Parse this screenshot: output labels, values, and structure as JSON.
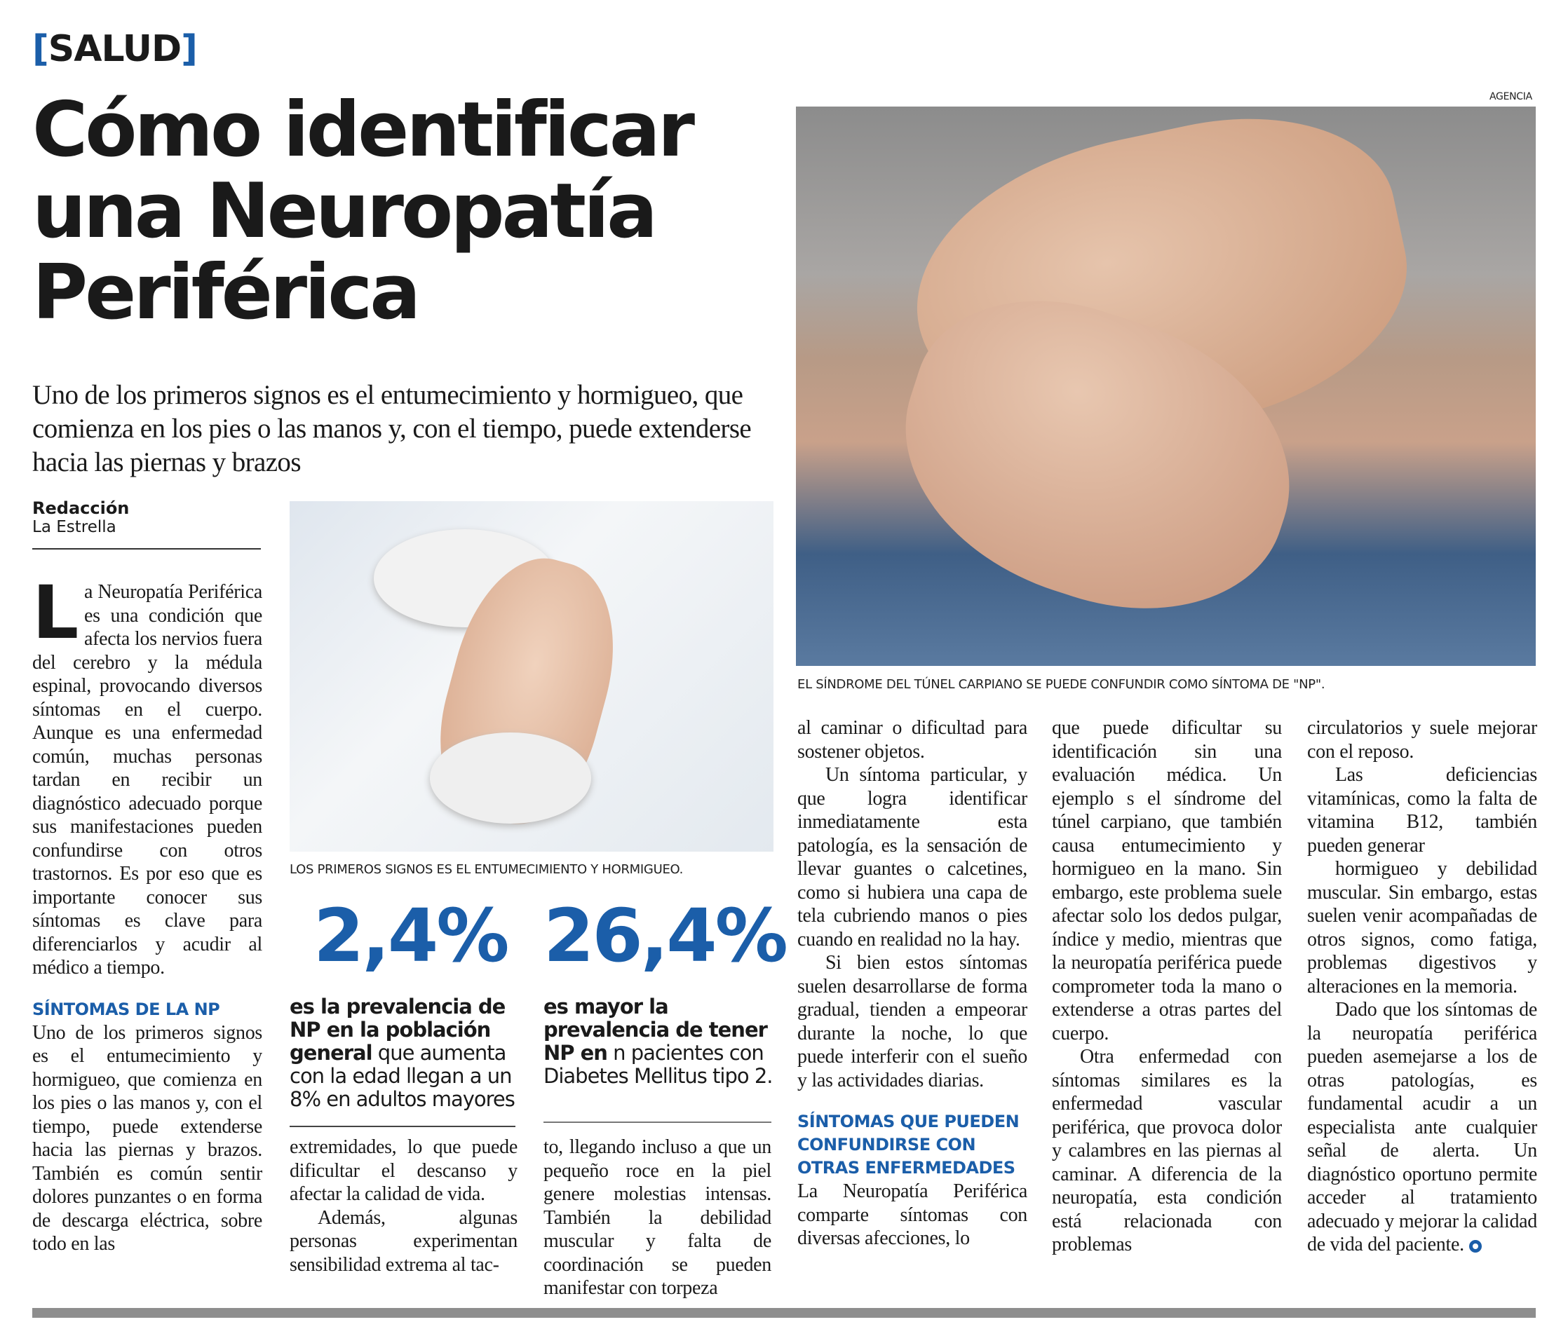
{
  "section": {
    "bracket_open": "[",
    "label": "SALUD",
    "bracket_close": "]"
  },
  "headline": "Cómo identificar una Neuropatía Periférica",
  "deck": "Uno de los primeros signos es el entumecimiento y hormigueo, que comienza en los pies o las manos y, con el tiempo, puede extenderse hacia las piernas y brazos",
  "byline": {
    "author": "Redacción",
    "outlet": "La Estrella"
  },
  "photos": {
    "hand": {
      "credit": "AGENCIA",
      "caption": "EL SÍNDROME DEL TÚNEL CARPIANO SE PUEDE CONFUNDIR COMO SÍNTOMA DE \"NP\"."
    },
    "foot": {
      "caption": "LOS PRIMEROS SIGNOS ES EL ENTUMECIMIENTO Y HORMIGUEO."
    }
  },
  "stats": [
    {
      "value": "2,4%",
      "bold": "es la prevalencia de NP en la población general",
      "text": " que aumenta con la edad llegan a un 8% en adultos mayores"
    },
    {
      "value": "26,4%",
      "bold": "es mayor la prevalencia de tener NP en",
      "text": " n pacientes con Diabetes Mellitus tipo 2."
    }
  ],
  "accent_color": "#1b5ea9",
  "columns": {
    "c1": {
      "drop_cap": "L",
      "intro": "a Neuropatía Periférica es una condición que afecta los nervios fuera del cerebro y la médula espinal, provocando diversos síntomas en el cuerpo. Aunque es una enfermedad común, muchas personas tardan en recibir un diagnóstico adecuado porque sus manifestaciones pueden confundirse con otros trastornos. Es por eso que es importante conocer sus síntomas es clave para diferenciarlos y acudir al médico a tiempo.",
      "subhead": "SÍNTOMAS DE LA NP",
      "p2": "Uno de los primeros signos es el entumecimiento y hormigueo, que comienza en los pies o las manos y, con el tiempo, puede extenderse hacia las piernas y brazos. También es común sentir dolores punzantes o en forma de descarga eléctrica, sobre todo en las"
    },
    "c2": {
      "p1": "extremidades, lo que puede dificultar el descanso y afectar la calidad de vida.",
      "p2": "Además, algunas personas experimentan sensibilidad extrema al tac-"
    },
    "c3": {
      "p1": "to, llegando incluso a que un pequeño roce en la piel genere molestias intensas. También la debilidad muscular y falta de coordinación se pueden manifestar con torpeza"
    },
    "c4": {
      "p1": "al caminar o dificultad para sostener objetos.",
      "p2": "Un síntoma particular, y que logra identificar inmediatamente esta patología, es la sensación de llevar guantes o calcetines, como si hubiera una capa de tela cubriendo manos o pies cuando en realidad no la hay.",
      "p3": "Si bien estos síntomas suelen desarrollarse de forma gradual, tienden a empeorar durante la noche, lo que puede interferir con el sueño y las actividades diarias.",
      "subhead": "SÍNTOMAS QUE PUEDEN CONFUNDIRSE CON OTRAS ENFERMEDADES",
      "p4": "La Neuropatía Periférica comparte síntomas con diversas afecciones, lo"
    },
    "c5": {
      "p1": "que puede dificultar su identificación sin una evaluación médica. Un ejemplo s el síndrome del túnel carpiano, que también causa entumecimiento y hormigueo en la mano. Sin embargo, este problema suele afectar solo los dedos pulgar, índice y medio, mientras que la neuropatía periférica puede comprometer toda la mano o extenderse a otras partes del cuerpo.",
      "p2": "Otra enfermedad con síntomas similares es la enfermedad vascular periférica, que provoca dolor y calambres en las piernas al caminar. A diferencia de la neuropatía, esta condición está relacionada con problemas"
    },
    "c6": {
      "p1": "circulatorios y suele mejorar con el reposo.",
      "p2": "Las deficiencias vitamínicas, como la falta de vitamina B12, también pueden generar",
      "p3": "hormigueo y debilidad muscular. Sin embargo, estas suelen venir acompañadas de otros signos, como fatiga, problemas digestivos y alteraciones en la memoria.",
      "p4": "Dado que los síntomas de la neuropatía periférica pueden asemejarse a los de otras patologías, es fundamental acudir a un especialista ante cualquier señal de alerta. Un diagnóstico oportuno permite acceder al tratamiento adecuado y mejorar la calidad de vida del paciente."
    }
  }
}
